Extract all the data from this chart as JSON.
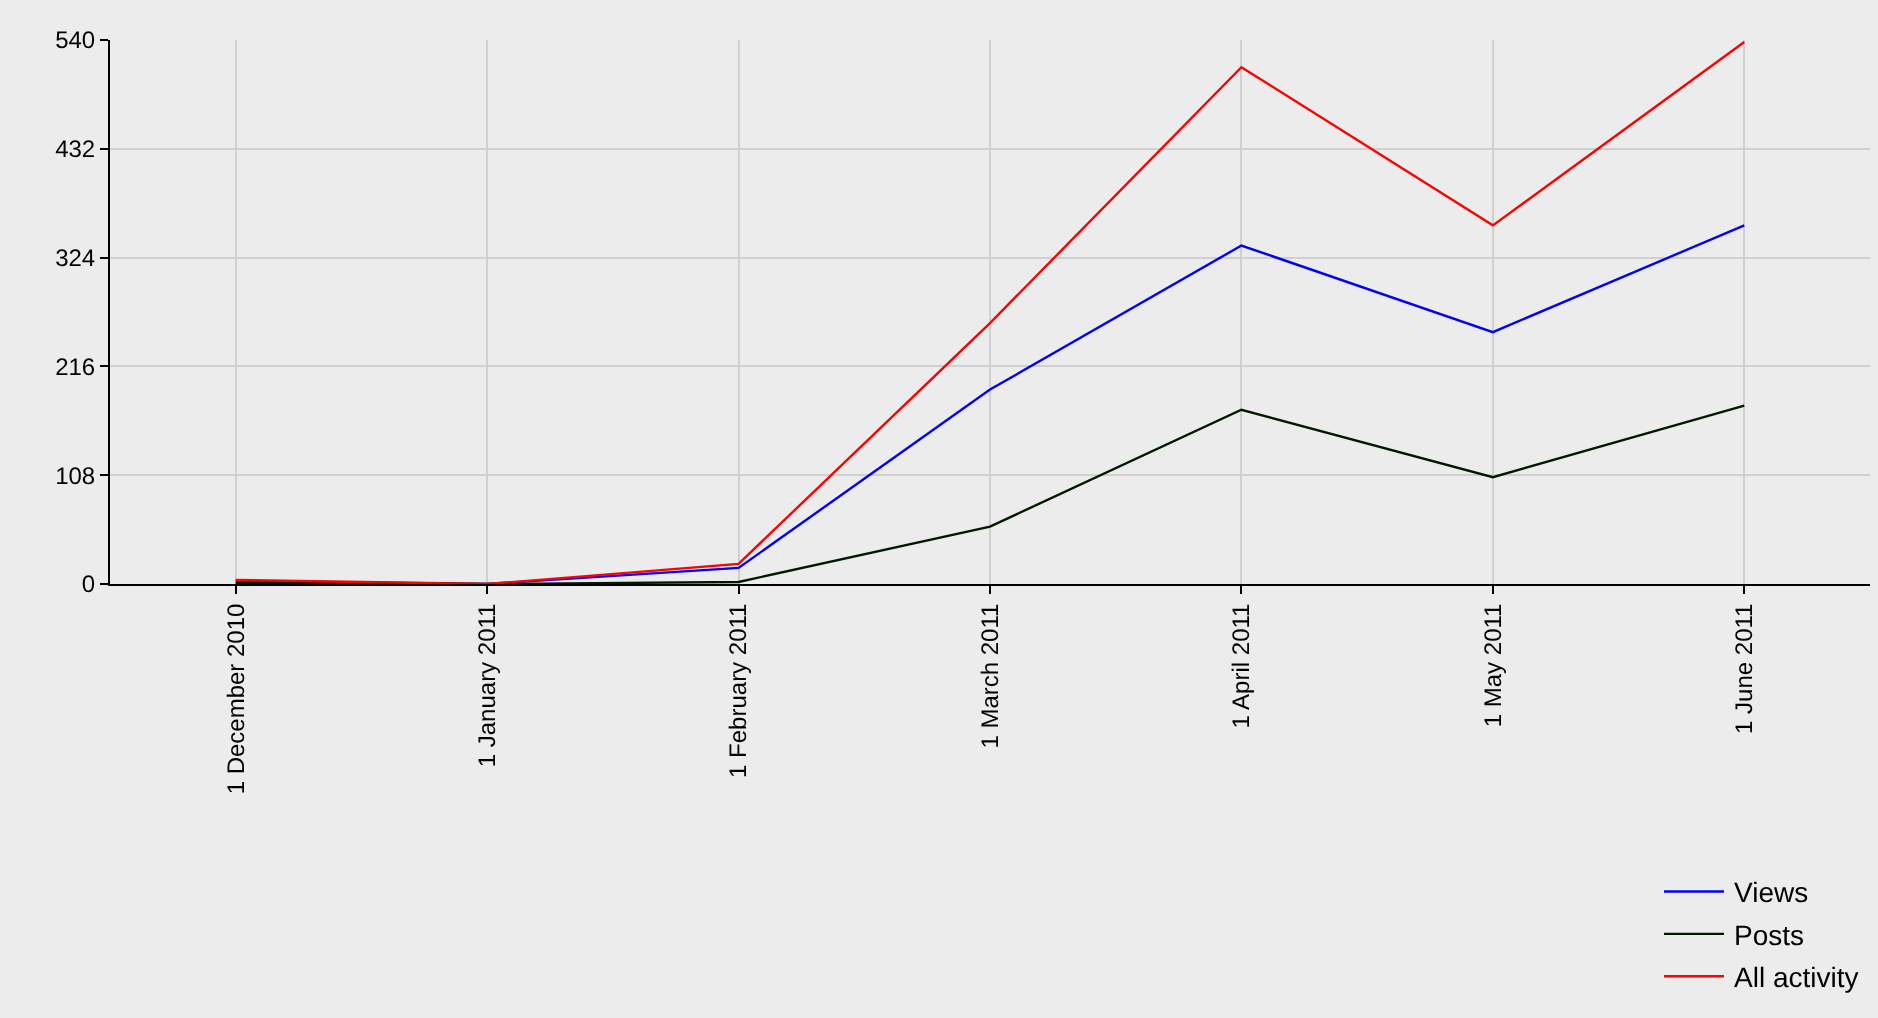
{
  "chart_data": {
    "type": "line",
    "categories": [
      "1 December 2010",
      "1 January 2011",
      "1 February 2011",
      "1 March 2011",
      "1 April 2011",
      "1 May 2011",
      "1 June 2011"
    ],
    "series": [
      {
        "name": "Views",
        "color": "#0000ff",
        "values": [
          3,
          0,
          16,
          193,
          336,
          250,
          356
        ]
      },
      {
        "name": "Posts",
        "color": "#001a00",
        "values": [
          1,
          0,
          2,
          57,
          173,
          106,
          177
        ]
      },
      {
        "name": "All activity",
        "color": "#ff0000",
        "values": [
          4,
          0,
          20,
          259,
          513,
          356,
          538
        ]
      }
    ],
    "ylim": [
      0,
      540
    ],
    "yticks": [
      0,
      108,
      216,
      324,
      432,
      540
    ],
    "grid": true,
    "legend": "bottom right",
    "marker": "none",
    "line_style": "solid"
  }
}
